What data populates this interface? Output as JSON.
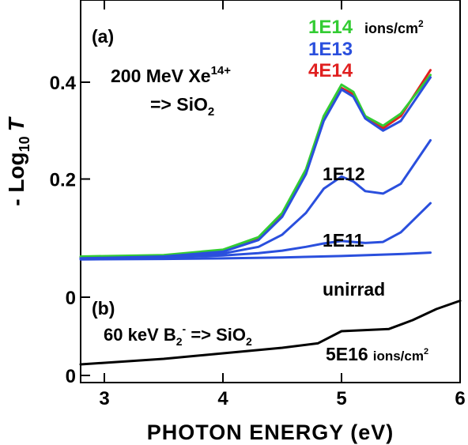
{
  "chart_data": [
    {
      "panel": "(a)",
      "type": "line",
      "xlabel": "PHOTON ENERGY (eV)",
      "ylabel": "- Log10 T",
      "ylabel_parts": {
        "prefix": "- Log",
        "sub": "10",
        "var": "T"
      },
      "xlim": [
        2.8,
        6.0
      ],
      "ylim": [
        0.0,
        0.5
      ],
      "x_ticks": [
        3,
        4,
        5,
        6
      ],
      "y_ticks": [
        0.2,
        0.4
      ],
      "y_tick_labels": [
        "0.2",
        "0.4"
      ],
      "annotation": {
        "line1_base": "200 MeV Xe",
        "line1_sup": "14+",
        "line2_base": "=> SiO",
        "line2_sub": "2"
      },
      "legend_units": {
        "base": "ions/cm",
        "sup": "2"
      },
      "series": [
        {
          "name": "1E14",
          "color": "#33cc33",
          "x": [
            2.8,
            3.5,
            4.0,
            4.3,
            4.5,
            4.7,
            4.85,
            5.0,
            5.1,
            5.2,
            5.35,
            5.5,
            5.75
          ],
          "y": [
            0.04,
            0.043,
            0.054,
            0.08,
            0.13,
            0.22,
            0.33,
            0.395,
            0.38,
            0.33,
            0.31,
            0.335,
            0.415
          ]
        },
        {
          "name": "1E13",
          "color": "#2a4fdd",
          "x": [
            2.8,
            3.5,
            4.0,
            4.3,
            4.5,
            4.7,
            4.85,
            5.0,
            5.1,
            5.2,
            5.35,
            5.5,
            5.75
          ],
          "y": [
            0.036,
            0.04,
            0.05,
            0.074,
            0.122,
            0.21,
            0.32,
            0.385,
            0.37,
            0.325,
            0.3,
            0.32,
            0.41
          ]
        },
        {
          "name": "4E14",
          "color": "#e02020",
          "x": [
            2.8,
            3.5,
            4.0,
            4.3,
            4.5,
            4.7,
            4.85,
            5.0,
            5.1,
            5.2,
            5.35,
            5.5,
            5.75
          ],
          "y": [
            0.038,
            0.042,
            0.052,
            0.078,
            0.126,
            0.215,
            0.325,
            0.388,
            0.375,
            0.33,
            0.305,
            0.33,
            0.425
          ]
        },
        {
          "name": "1E12",
          "color": "#2a4fdd",
          "x": [
            2.8,
            3.5,
            4.0,
            4.3,
            4.5,
            4.7,
            4.85,
            5.0,
            5.1,
            5.2,
            5.35,
            5.5,
            5.75
          ],
          "y": [
            0.035,
            0.038,
            0.046,
            0.06,
            0.085,
            0.13,
            0.18,
            0.205,
            0.195,
            0.175,
            0.17,
            0.19,
            0.28
          ]
        },
        {
          "name": "1E11",
          "color": "#2a4fdd",
          "x": [
            2.8,
            3.5,
            4.0,
            4.3,
            4.5,
            4.7,
            4.85,
            5.0,
            5.1,
            5.2,
            5.35,
            5.5,
            5.75
          ],
          "y": [
            0.036,
            0.038,
            0.042,
            0.047,
            0.052,
            0.06,
            0.067,
            0.072,
            0.07,
            0.068,
            0.07,
            0.09,
            0.15
          ]
        },
        {
          "name": "unirrad",
          "color": "#2a4fdd",
          "x": [
            2.8,
            3.5,
            4.0,
            4.5,
            5.0,
            5.5,
            5.75
          ],
          "y": [
            0.034,
            0.035,
            0.036,
            0.038,
            0.041,
            0.045,
            0.048
          ]
        }
      ]
    },
    {
      "panel": "(b)",
      "type": "line",
      "y_ticks": [
        0
      ],
      "y_tick_labels": [
        "0"
      ],
      "annotation": {
        "base": "60 keV B",
        "sub": "2",
        "sup": "-",
        "arrow": " => SiO",
        "arrow_sub": "2"
      },
      "series": [
        {
          "name": "5E16",
          "units_base": "ions/cm",
          "units_sup": "2",
          "color": "#000000",
          "x": [
            2.8,
            3.5,
            4.0,
            4.5,
            4.8,
            5.0,
            5.2,
            5.4,
            5.6,
            5.8,
            6.0
          ],
          "y": [
            0.01,
            0.02,
            0.03,
            0.04,
            0.048,
            0.07,
            0.072,
            0.074,
            0.09,
            0.11,
            0.125
          ]
        }
      ]
    }
  ]
}
